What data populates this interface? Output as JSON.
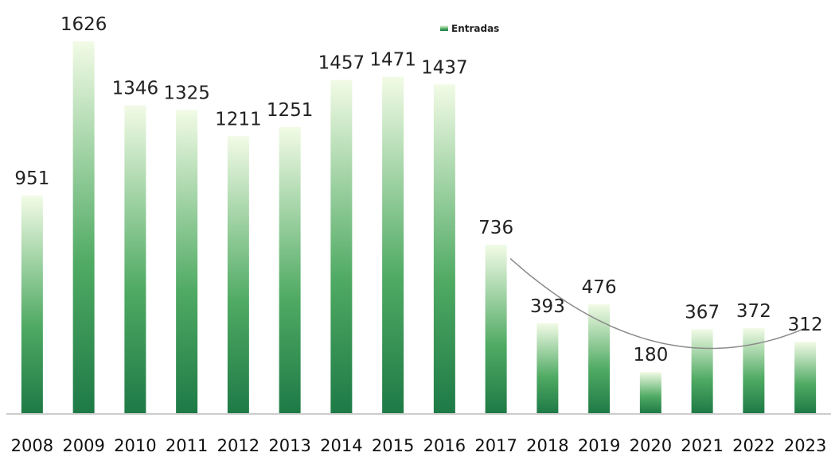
{
  "chart_data": {
    "type": "bar",
    "categories": [
      "2008",
      "2009",
      "2010",
      "2011",
      "2012",
      "2013",
      "2014",
      "2015",
      "2016",
      "2017",
      "2018",
      "2019",
      "2020",
      "2021",
      "2022",
      "2023"
    ],
    "series": [
      {
        "name": "Entradas",
        "values": [
          951,
          1626,
          1346,
          1325,
          1211,
          1251,
          1457,
          1471,
          1437,
          736,
          393,
          476,
          180,
          367,
          372,
          312
        ]
      }
    ],
    "ylim": [
      0,
      1650
    ],
    "grid": false,
    "legend": "top-center",
    "colors": {
      "bar_bottom": "#1e7a46",
      "bar_top": "#f2fbe6",
      "trendline": "#8a8a8a"
    }
  }
}
